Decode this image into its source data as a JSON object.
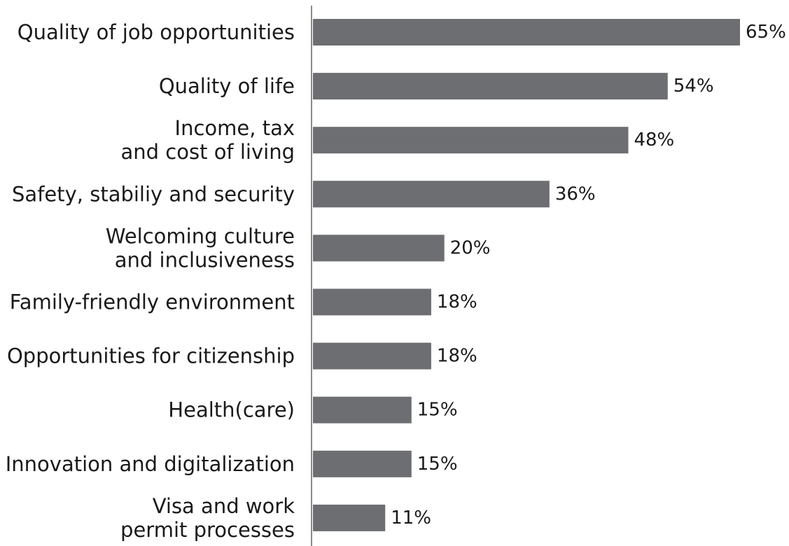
{
  "chart_data": {
    "type": "bar",
    "orientation": "horizontal",
    "categories": [
      [
        "Quality of job opportunities"
      ],
      [
        "Quality of life"
      ],
      [
        "Income, tax",
        "and cost of living"
      ],
      [
        "Safety, stabiliy and security"
      ],
      [
        "Welcoming culture",
        "and inclusiveness"
      ],
      [
        "Family-friendly environment"
      ],
      [
        "Opportunities for citizenship"
      ],
      [
        "Health(care)"
      ],
      [
        "Innovation and digitalization"
      ],
      [
        "Visa and work",
        "permit processes"
      ]
    ],
    "values": [
      65,
      54,
      48,
      36,
      20,
      18,
      18,
      15,
      15,
      11
    ],
    "value_labels": [
      "65%",
      "54%",
      "48%",
      "36%",
      "20%",
      "18%",
      "18%",
      "15%",
      "15%",
      "11%"
    ],
    "bar_color": "#6d6e71",
    "axis_color": "#8a8a8a",
    "xlim": [
      0,
      65
    ],
    "grid": false,
    "title": "",
    "xlabel": "",
    "ylabel": ""
  }
}
